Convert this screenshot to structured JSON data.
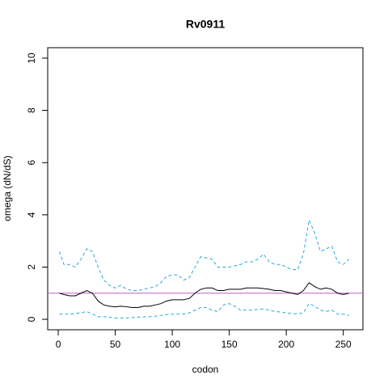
{
  "chart_data": {
    "type": "line",
    "title": "Rv0911",
    "x_label": "codon",
    "y_label": "omega (dN/dS)",
    "x": [
      1,
      5,
      10,
      15,
      20,
      25,
      30,
      35,
      40,
      45,
      50,
      55,
      60,
      65,
      70,
      75,
      80,
      85,
      90,
      95,
      100,
      105,
      110,
      115,
      120,
      125,
      130,
      135,
      140,
      145,
      150,
      155,
      160,
      165,
      170,
      175,
      180,
      185,
      190,
      195,
      200,
      205,
      210,
      215,
      220,
      225,
      230,
      235,
      240,
      245,
      250,
      255
    ],
    "series": [
      {
        "color": "#000000",
        "dashed": false,
        "values": [
          1.0,
          0.95,
          0.9,
          0.9,
          1.0,
          1.1,
          1.0,
          0.7,
          0.55,
          0.5,
          0.48,
          0.5,
          0.48,
          0.45,
          0.45,
          0.5,
          0.5,
          0.55,
          0.6,
          0.7,
          0.75,
          0.75,
          0.75,
          0.8,
          1.0,
          1.15,
          1.2,
          1.2,
          1.1,
          1.1,
          1.15,
          1.15,
          1.15,
          1.2,
          1.2,
          1.2,
          1.18,
          1.15,
          1.1,
          1.1,
          1.05,
          1.0,
          0.95,
          1.1,
          1.4,
          1.25,
          1.15,
          1.2,
          1.15,
          1.0,
          0.95,
          1.0
        ]
      },
      {
        "color": "#29a8e0",
        "dashed": true,
        "values": [
          2.6,
          2.1,
          2.1,
          2.0,
          2.3,
          2.7,
          2.6,
          2.0,
          1.5,
          1.3,
          1.2,
          1.3,
          1.15,
          1.1,
          1.1,
          1.15,
          1.2,
          1.25,
          1.4,
          1.65,
          1.7,
          1.7,
          1.5,
          1.6,
          2.0,
          2.4,
          2.35,
          2.3,
          2.0,
          2.0,
          2.0,
          2.05,
          2.1,
          2.2,
          2.2,
          2.3,
          2.5,
          2.2,
          2.1,
          2.1,
          2.0,
          1.9,
          1.9,
          2.5,
          3.8,
          3.3,
          2.6,
          2.7,
          2.8,
          2.2,
          2.1,
          2.3
        ]
      },
      {
        "color": "#29a8e0",
        "dashed": true,
        "values": [
          0.2,
          0.2,
          0.2,
          0.22,
          0.25,
          0.3,
          0.2,
          0.1,
          0.1,
          0.08,
          0.05,
          0.05,
          0.05,
          0.07,
          0.08,
          0.1,
          0.1,
          0.12,
          0.15,
          0.18,
          0.2,
          0.2,
          0.2,
          0.25,
          0.35,
          0.45,
          0.45,
          0.35,
          0.3,
          0.55,
          0.6,
          0.5,
          0.35,
          0.35,
          0.35,
          0.38,
          0.4,
          0.35,
          0.3,
          0.28,
          0.25,
          0.22,
          0.2,
          0.25,
          0.6,
          0.5,
          0.35,
          0.3,
          0.35,
          0.2,
          0.2,
          0.15
        ]
      }
    ],
    "hline": 1,
    "hline_color": "#c060c0",
    "xlim": [
      -9.24,
      267.24
    ],
    "xticks": [
      0,
      50,
      100,
      150,
      200,
      250
    ],
    "ylim": [
      -0.4,
      10.4
    ],
    "yticks": [
      0,
      2,
      4,
      6,
      8,
      10
    ]
  }
}
